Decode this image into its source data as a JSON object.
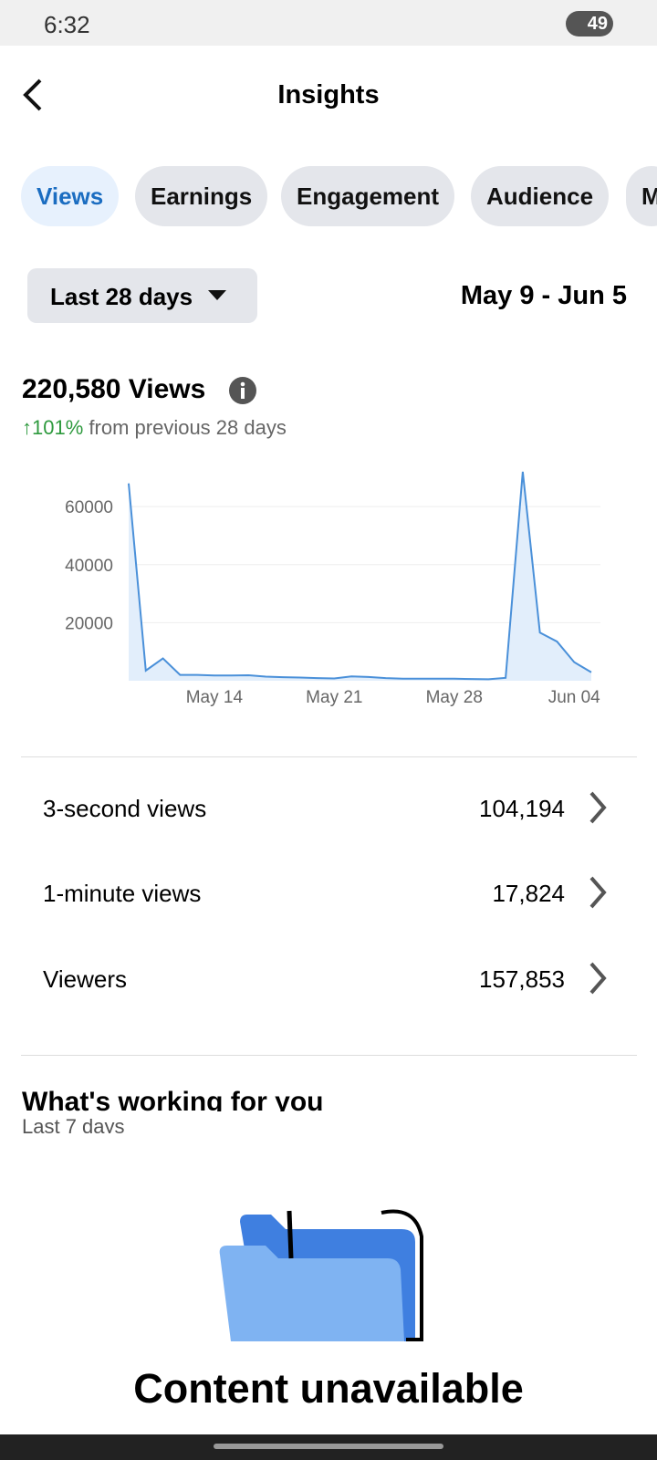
{
  "status_bar": {
    "time": "6:32",
    "battery": "49"
  },
  "header": {
    "title": "Insights"
  },
  "tabs": [
    "Views",
    "Earnings",
    "Engagement",
    "Audience",
    "M"
  ],
  "filter": {
    "dropdown": "Last 28 days",
    "range": "May 9 - Jun 5"
  },
  "summary": {
    "total": "220,580 Views",
    "change": "↑101%",
    "change_note": "from previous 28 days"
  },
  "chart_data": {
    "type": "line",
    "x": [
      "May 09",
      "May 10",
      "May 11",
      "May 12",
      "May 13",
      "May 14",
      "May 15",
      "May 16",
      "May 17",
      "May 18",
      "May 19",
      "May 20",
      "May 21",
      "May 22",
      "May 23",
      "May 24",
      "May 25",
      "May 26",
      "May 27",
      "May 28",
      "May 29",
      "May 30",
      "May 31",
      "Jun 01",
      "Jun 02",
      "Jun 03",
      "Jun 04",
      "Jun 05"
    ],
    "series": [
      {
        "name": "Views",
        "color": "#4a90d9",
        "values": [
          68000,
          3500,
          7700,
          2000,
          2000,
          1800,
          1800,
          1900,
          1400,
          1200,
          1100,
          900,
          800,
          1500,
          1300,
          900,
          700,
          700,
          700,
          700,
          600,
          500,
          1000,
          72000,
          16600,
          13500,
          6400,
          2900
        ]
      }
    ],
    "xticks": [
      "May 14",
      "May 21",
      "May 28",
      "Jun 04"
    ],
    "ylim": [
      0,
      72000
    ],
    "yticks": [
      20000,
      40000,
      60000
    ],
    "grid": true,
    "fill": "#e2eefb"
  },
  "metrics": [
    {
      "label": "3-second views",
      "value": "104,194"
    },
    {
      "label": "1-minute views",
      "value": "17,824"
    },
    {
      "label": "Viewers",
      "value": "157,853"
    }
  ],
  "section": {
    "title": "What's working for you",
    "subtitle": "Last 7 days"
  },
  "empty_state": {
    "message": "Content unavailable"
  }
}
